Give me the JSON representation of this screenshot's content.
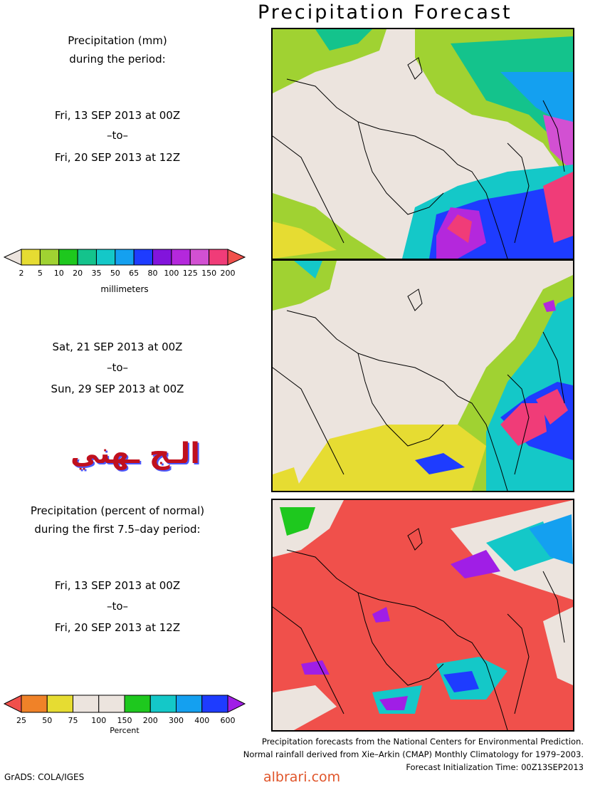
{
  "title": "Precipitation Forecast",
  "period1": {
    "heading1": "Precipitation (mm)",
    "heading2": "during the period:",
    "start": "Fri, 13 SEP 2013 at 00Z",
    "to": "–to–",
    "end": "Fri, 20 SEP 2013 at 12Z"
  },
  "period2": {
    "start": "Sat, 21 SEP 2013 at 00Z",
    "to": "–to–",
    "end": "Sun, 29 SEP 2013 at 00Z"
  },
  "period3": {
    "heading1": "Precipitation (percent of normal)",
    "heading2": "during the first 7.5–day period:",
    "start": "Fri, 13 SEP 2013 at 00Z",
    "to": "–to–",
    "end": "Fri, 20 SEP 2013 at 12Z"
  },
  "mm_colorbar": {
    "ticks": [
      "2",
      "5",
      "10",
      "20",
      "35",
      "50",
      "65",
      "80",
      "100",
      "125",
      "150",
      "200"
    ],
    "colors": [
      "#ece4de",
      "#e6dc32",
      "#a0d232",
      "#1ec81e",
      "#14c38c",
      "#14c8c8",
      "#14a0f0",
      "#1e3cff",
      "#8214dc",
      "#b428dc",
      "#d250d2",
      "#f03c78",
      "#f0504b"
    ],
    "unit": "millimeters"
  },
  "pct_colorbar": {
    "ticks": [
      "25",
      "50",
      "75",
      "100",
      "150",
      "200",
      "300",
      "400",
      "600"
    ],
    "colors": [
      "#f0504b",
      "#f08228",
      "#e6dc32",
      "#ece4de",
      "#ece4de",
      "#1ec81e",
      "#14c8c8",
      "#14a0f0",
      "#1e3cff",
      "#a01ee6"
    ],
    "unit": "Percent"
  },
  "watermark_arabic": "الـج ـهني",
  "footer": {
    "line1": "Precipitation forecasts from the National Centers for Environmental Prediction.",
    "line2": "Normal rainfall derived from Xie–Arkin (CMAP) Monthly Climatology for 1979–2003.",
    "line3": "Forecast Initialization Time: 00Z13SEP2013"
  },
  "credit": "GrADS: COLA/IGES",
  "site": "albrari.com"
}
